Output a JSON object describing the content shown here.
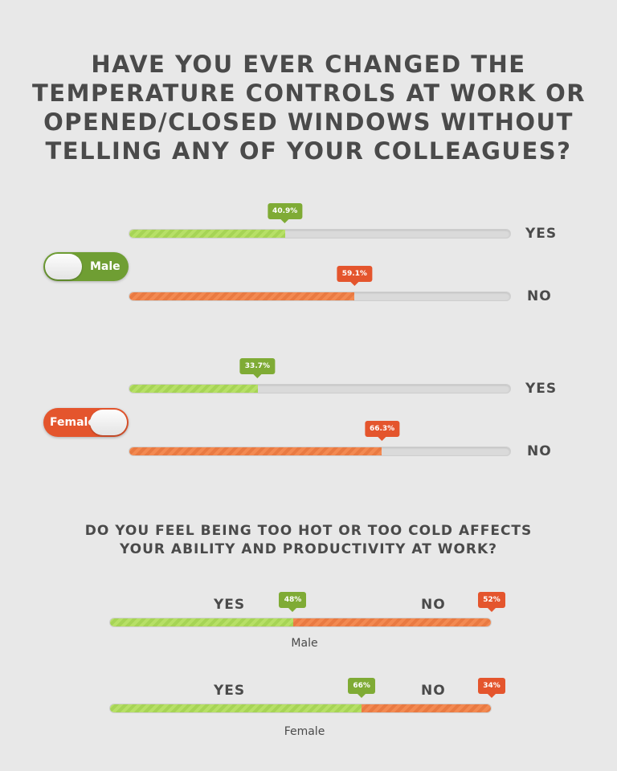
{
  "title_lines": [
    "HAVE YOU EVER CHANGED THE",
    "TEMPERATURE CONTROLS AT WORK OR",
    "OPENED/CLOSED WINDOWS WITHOUT",
    "TELLING ANY OF YOUR COLLEAGUES?"
  ],
  "question2_lines": [
    "DO YOU FEEL BEING TOO HOT OR TOO COLD AFFECTS",
    "YOUR ABILITY AND PRODUCTIVITY AT WORK?"
  ],
  "colors": {
    "green": "#7fab35",
    "orange": "#e4552d",
    "background": "#e8e8e8"
  },
  "chart_data": [
    {
      "type": "bar",
      "title": "Have you ever changed the temperature controls at work or opened/closed windows without telling any of your colleagues?",
      "groups": [
        {
          "name": "Male",
          "bars": [
            {
              "answer": "YES",
              "value": 40.9,
              "label": "40.9%"
            },
            {
              "answer": "NO",
              "value": 59.1,
              "label": "59.1%"
            }
          ]
        },
        {
          "name": "Female",
          "bars": [
            {
              "answer": "YES",
              "value": 33.7,
              "label": "33.7%"
            },
            {
              "answer": "NO",
              "value": 66.3,
              "label": "66.3%"
            }
          ]
        }
      ],
      "ylim": [
        0,
        100
      ]
    },
    {
      "type": "bar",
      "title": "Do you feel being too hot or too cold affects your ability and productivity at work?",
      "stacked": true,
      "yes_label": "YES",
      "no_label": "NO",
      "rows": [
        {
          "name": "Male",
          "yes": 48,
          "no": 52,
          "yes_label": "48%",
          "no_label": "52%"
        },
        {
          "name": "Female",
          "yes": 66,
          "no": 34,
          "yes_label": "66%",
          "no_label": "34%"
        }
      ]
    }
  ]
}
